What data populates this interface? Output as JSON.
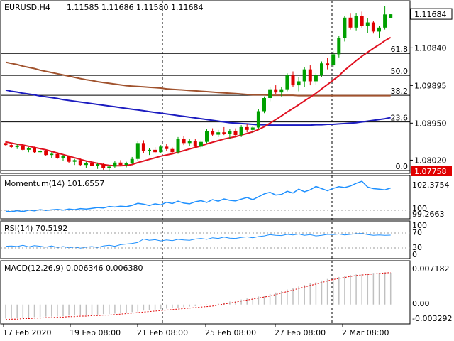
{
  "window": {
    "symbol_line": "EURUSD,H4",
    "ohlc": "1.11585 1.11686 1.11580 1.11684"
  },
  "colors": {
    "bull": "#00a000",
    "bear": "#e00000",
    "sma_fast": "#e01020",
    "sma_mid": "#a0522d",
    "sma_slow": "#1c1cc0",
    "indicator": "#1e90ff",
    "fib": "#000000",
    "price_box": "#e00000",
    "separator": "#000000"
  },
  "chart_data": [
    {
      "type": "candlestick",
      "title": "EURUSD,H4",
      "last_price_label": "1.11684",
      "current_price_label": "1.07758",
      "y_ticks": [
        "1.11684",
        "1.10840",
        "1.09895",
        "1.08950",
        "1.08020"
      ],
      "ylim": [
        1.0776,
        1.119
      ],
      "fib_levels": [
        {
          "label": "61.8",
          "price": 1.107
        },
        {
          "label": "50.0",
          "price": 1.1015
        },
        {
          "label": "38.2",
          "price": 1.0965
        },
        {
          "label": "23.6",
          "price": 1.0898
        },
        {
          "label": "0.0",
          "price": 1.0776
        }
      ],
      "candles": [
        [
          1.0845,
          1.085,
          1.0838,
          1.084
        ],
        [
          1.084,
          1.0845,
          1.0832,
          1.0835
        ],
        [
          1.0835,
          1.0842,
          1.083,
          1.0838
        ],
        [
          1.0838,
          1.084,
          1.0825,
          1.0828
        ],
        [
          1.0828,
          1.0835,
          1.0822,
          1.0832
        ],
        [
          1.0832,
          1.0836,
          1.082,
          1.0822
        ],
        [
          1.0822,
          1.083,
          1.0818,
          1.0826
        ],
        [
          1.0826,
          1.0828,
          1.0812,
          1.0815
        ],
        [
          1.0815,
          1.0822,
          1.0808,
          1.0818
        ],
        [
          1.0818,
          1.0822,
          1.0805,
          1.0808
        ],
        [
          1.0808,
          1.0815,
          1.08,
          1.0812
        ],
        [
          1.0812,
          1.0814,
          1.0795,
          1.0798
        ],
        [
          1.0798,
          1.0805,
          1.079,
          1.0802
        ],
        [
          1.0802,
          1.0806,
          1.0788,
          1.079
        ],
        [
          1.079,
          1.0798,
          1.0782,
          1.0795
        ],
        [
          1.0795,
          1.08,
          1.0784,
          1.0788
        ],
        [
          1.0788,
          1.0796,
          1.078,
          1.0792
        ],
        [
          1.0792,
          1.0795,
          1.0778,
          1.0782
        ],
        [
          1.0782,
          1.079,
          1.0776,
          1.0786
        ],
        [
          1.0786,
          1.08,
          1.0782,
          1.0796
        ],
        [
          1.0796,
          1.0802,
          1.0788,
          1.079
        ],
        [
          1.079,
          1.0798,
          1.0784,
          1.0795
        ],
        [
          1.0795,
          1.081,
          1.0792,
          1.0805
        ],
        [
          1.0805,
          1.085,
          1.08,
          1.0845
        ],
        [
          1.0845,
          1.0852,
          1.082,
          1.0825
        ],
        [
          1.0825,
          1.0832,
          1.0815,
          1.0828
        ],
        [
          1.0828,
          1.0835,
          1.0818,
          1.0822
        ],
        [
          1.0822,
          1.084,
          1.082,
          1.0836
        ],
        [
          1.0836,
          1.0842,
          1.0826,
          1.083
        ],
        [
          1.083,
          1.0834,
          1.0818,
          1.0822
        ],
        [
          1.0822,
          1.086,
          1.0818,
          1.0855
        ],
        [
          1.0855,
          1.0862,
          1.084,
          1.0845
        ],
        [
          1.0845,
          1.0855,
          1.0838,
          1.085
        ],
        [
          1.085,
          1.0856,
          1.0832,
          1.0836
        ],
        [
          1.0836,
          1.0852,
          1.083,
          1.0848
        ],
        [
          1.0848,
          1.088,
          1.0845,
          1.0875
        ],
        [
          1.0875,
          1.0882,
          1.0862,
          1.0866
        ],
        [
          1.0866,
          1.0878,
          1.086,
          1.0872
        ],
        [
          1.0872,
          1.0885,
          1.0865,
          1.0868
        ],
        [
          1.0868,
          1.088,
          1.0855,
          1.0876
        ],
        [
          1.0876,
          1.0882,
          1.086,
          1.0865
        ],
        [
          1.0865,
          1.089,
          1.086,
          1.0885
        ],
        [
          1.0885,
          1.0892,
          1.0872,
          1.0878
        ],
        [
          1.0878,
          1.0888,
          1.087,
          1.0884
        ],
        [
          1.0884,
          1.093,
          1.088,
          1.0925
        ],
        [
          1.0925,
          1.0962,
          1.092,
          1.0958
        ],
        [
          1.0958,
          1.0985,
          1.095,
          1.098
        ],
        [
          1.098,
          1.099,
          1.0968,
          1.0972
        ],
        [
          1.0972,
          1.0985,
          1.0962,
          1.098
        ],
        [
          1.098,
          1.102,
          1.0975,
          1.1015
        ],
        [
          1.1015,
          1.1025,
          1.0985,
          1.099
        ],
        [
          1.099,
          1.101,
          1.0975,
          1.1
        ],
        [
          1.1,
          1.1035,
          1.0985,
          1.103
        ],
        [
          1.103,
          1.104,
          1.099,
          1.1
        ],
        [
          1.1,
          1.102,
          1.0992,
          1.1015
        ],
        [
          1.1015,
          1.105,
          1.101,
          1.1045
        ],
        [
          1.1045,
          1.1058,
          1.103,
          1.104
        ],
        [
          1.104,
          1.1075,
          1.1035,
          1.1068
        ],
        [
          1.1068,
          1.1115,
          1.106,
          1.1108
        ],
        [
          1.1108,
          1.1165,
          1.11,
          1.116
        ],
        [
          1.116,
          1.117,
          1.113,
          1.1135
        ],
        [
          1.1135,
          1.1172,
          1.1128,
          1.1165
        ],
        [
          1.1165,
          1.1175,
          1.1135,
          1.114
        ],
        [
          1.114,
          1.1158,
          1.1122,
          1.1148
        ],
        [
          1.1148,
          1.1152,
          1.112,
          1.1125
        ],
        [
          1.1125,
          1.114,
          1.1108,
          1.1135
        ],
        [
          1.1135,
          1.119,
          1.113,
          1.1168
        ],
        [
          1.11585,
          1.11686,
          1.1158,
          1.11684
        ]
      ],
      "sma_fast": [
        1.0848,
        1.0845,
        1.0842,
        1.084,
        1.0837,
        1.0834,
        1.0831,
        1.0828,
        1.0824,
        1.082,
        1.0816,
        1.0812,
        1.0808,
        1.0804,
        1.08,
        1.0797,
        1.0794,
        1.0791,
        1.0789,
        1.0788,
        1.0788,
        1.0789,
        1.0791,
        1.0796,
        1.08,
        1.0804,
        1.0808,
        1.0812,
        1.0815,
        1.0818,
        1.0822,
        1.0826,
        1.083,
        1.0834,
        1.0838,
        1.0843,
        1.0847,
        1.0851,
        1.0855,
        1.0858,
        1.0861,
        1.0865,
        1.0869,
        1.0873,
        1.0879,
        1.0886,
        1.0895,
        1.0904,
        1.0913,
        1.0923,
        1.0932,
        1.0941,
        1.0951,
        1.096,
        1.097,
        1.0981,
        1.0992,
        1.1003,
        1.1014,
        1.1028,
        1.104,
        1.1052,
        1.1063,
        1.1073,
        1.1083,
        1.1092,
        1.1102,
        1.111
      ],
      "sma_mid": [
        1.1048,
        1.1045,
        1.1042,
        1.1038,
        1.1035,
        1.1032,
        1.1028,
        1.1025,
        1.1022,
        1.1019,
        1.1016,
        1.1013,
        1.101,
        1.1007,
        1.1004,
        1.1002,
        1.0999,
        1.0997,
        1.0995,
        1.0993,
        1.0991,
        1.0989,
        1.0988,
        1.0987,
        1.0986,
        1.0985,
        1.0984,
        1.0983,
        1.0981,
        1.098,
        1.0979,
        1.0978,
        1.0977,
        1.0976,
        1.0975,
        1.0974,
        1.0973,
        1.0972,
        1.0971,
        1.097,
        1.0969,
        1.0968,
        1.0967,
        1.0966,
        1.0966,
        1.0966,
        1.0965,
        1.0965,
        1.0965,
        1.0965,
        1.0965,
        1.0964,
        1.0964,
        1.0964,
        1.0964,
        1.0964,
        1.0964,
        1.0964,
        1.0964,
        1.0964,
        1.0964,
        1.0964,
        1.0964,
        1.0964,
        1.0964,
        1.0964,
        1.0964,
        1.0964
      ],
      "sma_slow": [
        1.0978,
        1.0975,
        1.0973,
        1.097,
        1.0968,
        1.0966,
        1.0963,
        1.0961,
        1.0959,
        1.0957,
        1.0954,
        1.0952,
        1.095,
        1.0948,
        1.0946,
        1.0944,
        1.0942,
        1.094,
        1.0938,
        1.0936,
        1.0934,
        1.0932,
        1.093,
        1.0928,
        1.0926,
        1.0924,
        1.0922,
        1.092,
        1.0918,
        1.0916,
        1.0914,
        1.0912,
        1.091,
        1.0908,
        1.0906,
        1.0904,
        1.0902,
        1.09,
        1.0898,
        1.0896,
        1.0895,
        1.0894,
        1.0893,
        1.0892,
        1.0891,
        1.0891,
        1.089,
        1.089,
        1.089,
        1.089,
        1.089,
        1.089,
        1.089,
        1.089,
        1.0891,
        1.0891,
        1.0892,
        1.0892,
        1.0893,
        1.0894,
        1.0895,
        1.0896,
        1.0898,
        1.09,
        1.0902,
        1.0904,
        1.0906,
        1.0909
      ]
    },
    {
      "type": "line",
      "title": "Momentum(14) 101.6557",
      "y_ticks": [
        "102.3754",
        "100",
        "99.2663"
      ],
      "ylim": [
        99.2663,
        102.3754
      ],
      "values": [
        99.45,
        99.4,
        99.5,
        99.42,
        99.55,
        99.48,
        99.6,
        99.52,
        99.58,
        99.62,
        99.55,
        99.65,
        99.6,
        99.7,
        99.66,
        99.72,
        99.8,
        99.76,
        99.9,
        99.85,
        99.92,
        99.88,
        100.0,
        100.2,
        100.12,
        99.98,
        100.15,
        100.05,
        100.3,
        100.18,
        100.4,
        100.22,
        100.15,
        100.35,
        100.45,
        100.28,
        100.55,
        100.4,
        100.62,
        100.48,
        100.42,
        100.6,
        100.75,
        100.55,
        100.82,
        101.1,
        101.25,
        100.98,
        101.05,
        101.35,
        101.18,
        101.55,
        101.3,
        101.48,
        101.8,
        101.6,
        101.4,
        101.62,
        101.78,
        101.7,
        101.85,
        102.1,
        102.3,
        101.75,
        101.6,
        101.55,
        101.48,
        101.6557
      ]
    },
    {
      "type": "line",
      "title": "RSI(14) 70.5192",
      "y_ticks": [
        "100",
        "70",
        "30",
        "0"
      ],
      "ylim": [
        0,
        100
      ],
      "values": [
        35,
        36,
        34,
        38,
        33,
        37,
        35,
        32,
        36,
        31,
        34,
        30,
        33,
        29,
        32,
        34,
        31,
        36,
        38,
        35,
        40,
        42,
        44,
        47,
        58,
        54,
        56,
        52,
        55,
        53,
        57,
        55,
        54,
        58,
        60,
        57,
        62,
        60,
        64,
        61,
        60,
        63,
        65,
        62,
        66,
        68,
        72,
        70,
        69,
        73,
        71,
        74,
        70,
        72,
        68,
        70,
        73,
        72,
        74,
        71,
        73,
        75,
        76,
        72,
        70,
        71,
        70,
        70.5
      ]
    },
    {
      "type": "bar",
      "title": "MACD(12,26,9) 0.006346 0.006380",
      "y_ticks": [
        "0.007182",
        "0.00",
        "-0.003292"
      ],
      "ylim": [
        -0.003292,
        0.007182
      ],
      "macd": [
        -0.0028,
        -0.0027,
        -0.0027,
        -0.0026,
        -0.0026,
        -0.0025,
        -0.0025,
        -0.0024,
        -0.0024,
        -0.0023,
        -0.0023,
        -0.0022,
        -0.0022,
        -0.0021,
        -0.0021,
        -0.002,
        -0.002,
        -0.0019,
        -0.0019,
        -0.0018,
        -0.0017,
        -0.0016,
        -0.0015,
        -0.0014,
        -0.0012,
        -0.0011,
        -0.001,
        -0.0009,
        -0.0008,
        -0.0007,
        -0.0006,
        -0.0005,
        -0.0004,
        -0.0003,
        -0.0002,
        -0.0001,
        0.0,
        0.0002,
        0.0004,
        0.0006,
        0.0008,
        0.001,
        0.0012,
        0.0014,
        0.0016,
        0.0018,
        0.0021,
        0.0024,
        0.0027,
        0.003,
        0.0033,
        0.0036,
        0.0039,
        0.0042,
        0.0045,
        0.0048,
        0.0051,
        0.0053,
        0.0055,
        0.0057,
        0.0059,
        0.006,
        0.0061,
        0.0062,
        0.0063,
        0.0063,
        0.0064,
        0.006346
      ],
      "signal": [
        -0.003,
        -0.0029,
        -0.0029,
        -0.0028,
        -0.0028,
        -0.0027,
        -0.0027,
        -0.0026,
        -0.0026,
        -0.0025,
        -0.0025,
        -0.0024,
        -0.0024,
        -0.0023,
        -0.0023,
        -0.0022,
        -0.0022,
        -0.0021,
        -0.0021,
        -0.002,
        -0.0019,
        -0.0018,
        -0.0017,
        -0.0016,
        -0.0015,
        -0.0014,
        -0.0013,
        -0.0012,
        -0.0011,
        -0.001,
        -0.0009,
        -0.0008,
        -0.0007,
        -0.0006,
        -0.0005,
        -0.0004,
        -0.0003,
        -0.0001,
        0.0001,
        0.0003,
        0.0005,
        0.0007,
        0.0009,
        0.0011,
        0.0013,
        0.0015,
        0.0017,
        0.002,
        0.0023,
        0.0026,
        0.0029,
        0.0032,
        0.0035,
        0.0038,
        0.0041,
        0.0044,
        0.0047,
        0.005,
        0.0052,
        0.0054,
        0.0056,
        0.0058,
        0.0059,
        0.006,
        0.0061,
        0.0062,
        0.0063,
        0.00638
      ]
    }
  ],
  "x_axis": {
    "labels": [
      "17 Feb 2020",
      "19 Feb 08:00",
      "21 Feb 08:00",
      "25 Feb 08:00",
      "27 Feb 08:00",
      "2 Mar 08:00"
    ]
  }
}
